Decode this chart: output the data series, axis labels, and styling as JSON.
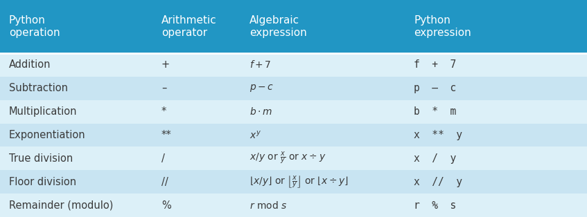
{
  "header_bg": "#2196C4",
  "header_text_color": "#FFFFFF",
  "row_bg_light": "#DCF0F8",
  "row_bg_dark": "#C8E4F2",
  "body_text_color": "#3A3A3A",
  "table_bg": "#DCF0F8",
  "headers": [
    "Python\noperation",
    "Arithmetic\noperator",
    "Algebraic\nexpression",
    "Python\nexpression"
  ],
  "rows": [
    [
      "Addition",
      "+",
      "$f+7$",
      "f  +  7"
    ],
    [
      "Subtraction",
      "–",
      "$p-c$",
      "p  –  c"
    ],
    [
      "Multiplication",
      "*",
      "$b \\cdot m$",
      "b  *  m"
    ],
    [
      "Exponentiation",
      "**",
      "$x^y$",
      "x  **  y"
    ],
    [
      "True division",
      "/",
      "$x/y$ or $\\frac{x}{y}$ or $x\\div y$",
      "x  /  y"
    ],
    [
      "Floor division",
      "//",
      "$\\lfloor x/y \\rfloor$ or $\\left\\lfloor \\frac{x}{y} \\right\\rfloor$ or $\\lfloor x\\div y\\rfloor$",
      "x  //  y"
    ],
    [
      "Remainder (modulo)",
      "%",
      "$r$ mod $s$",
      "r  %  s"
    ]
  ],
  "header_fontsize": 11,
  "body_fontsize": 10.5,
  "fig_width": 8.47,
  "fig_height": 3.14,
  "dpi": 100
}
